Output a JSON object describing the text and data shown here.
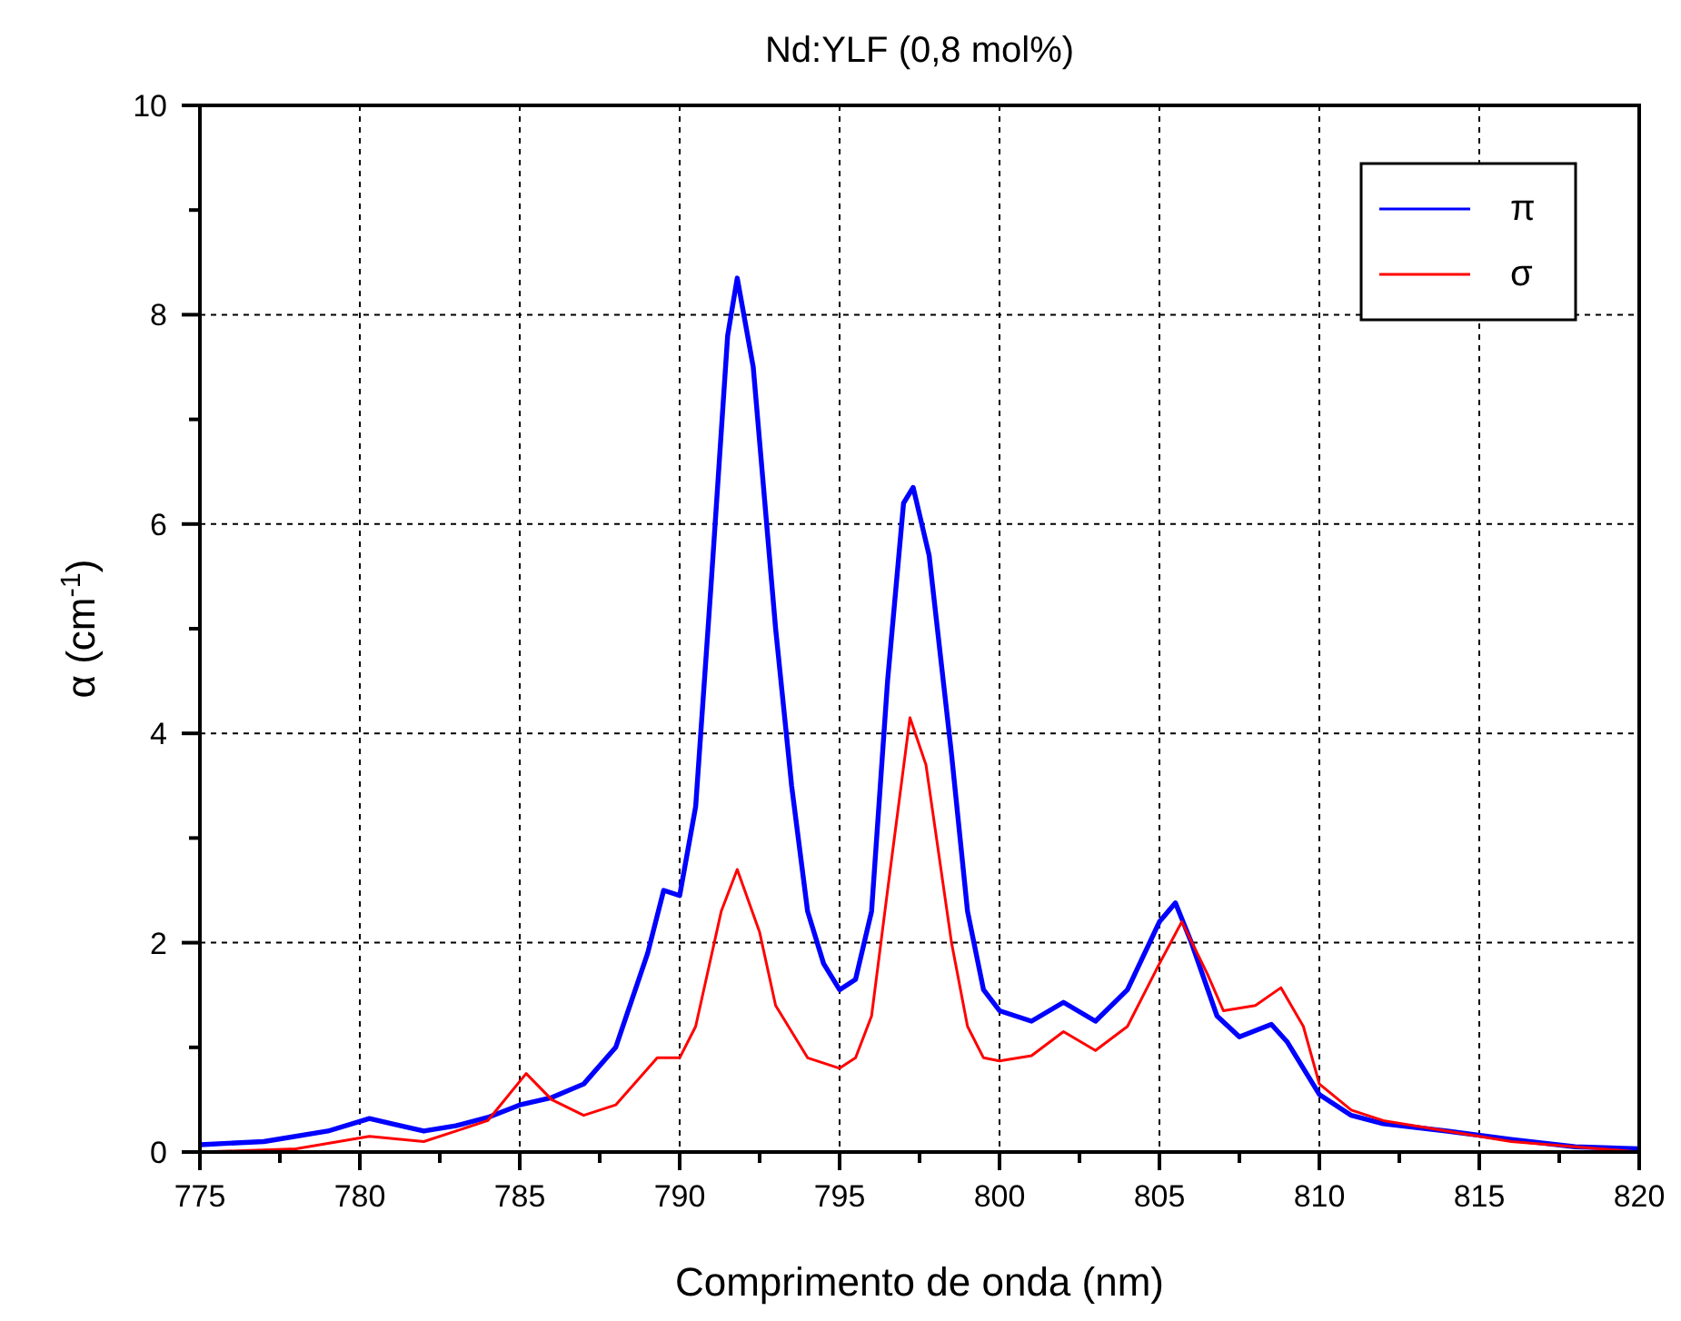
{
  "chart_data": {
    "type": "line",
    "title": "Nd:YLF (0,8 mol%)",
    "xlabel": "Comprimento de onda (nm)",
    "ylabel": "α (cm$^{-1}$)",
    "xlim": [
      775,
      820
    ],
    "ylim": [
      0,
      10
    ],
    "xticks": [
      775,
      {
        "value": 777.5,
        "label": null
      },
      780,
      {
        "value": 782.5,
        "label": null
      },
      785,
      {
        "value": 787.5,
        "label": null
      },
      790,
      {
        "value": 792.5,
        "label": null
      },
      795,
      {
        "value": 797.5,
        "label": null
      },
      800,
      {
        "value": 802.5,
        "label": null
      },
      805,
      {
        "value": 807.5,
        "label": null
      },
      810,
      {
        "value": 812.5,
        "label": null
      },
      815,
      {
        "value": 817.5,
        "label": null
      },
      820
    ],
    "yticks": [
      0,
      {
        "value": 1,
        "label": null
      },
      2,
      {
        "value": 3,
        "label": null
      },
      4,
      {
        "value": 5,
        "label": null
      },
      6,
      {
        "value": 7,
        "label": null
      },
      8,
      {
        "value": 9,
        "label": null
      },
      10
    ],
    "grid": true,
    "legend": "top right",
    "line_style": "solid",
    "marker": "none",
    "series": [
      {
        "name": "π",
        "color": "#0000ff",
        "x": [
          775,
          777,
          779,
          780.3,
          781,
          782,
          783,
          784,
          785,
          786,
          787,
          788,
          789,
          789.5,
          790,
          790.5,
          791,
          791.5,
          791.8,
          792.3,
          793,
          793.5,
          794,
          794.5,
          795,
          795.5,
          796,
          796.5,
          797,
          797.3,
          797.8,
          798.5,
          799,
          799.5,
          800,
          801,
          802,
          803,
          804,
          805,
          805.5,
          806,
          806.8,
          807.5,
          808.5,
          809,
          810,
          811,
          812,
          814,
          816,
          818,
          820
        ],
        "values": [
          0.07,
          0.1,
          0.2,
          0.32,
          0.27,
          0.2,
          0.25,
          0.33,
          0.45,
          0.52,
          0.65,
          1.0,
          1.9,
          2.5,
          2.45,
          3.3,
          5.5,
          7.8,
          8.35,
          7.5,
          5.0,
          3.5,
          2.3,
          1.8,
          1.55,
          1.65,
          2.3,
          4.5,
          6.2,
          6.35,
          5.7,
          3.8,
          2.3,
          1.55,
          1.35,
          1.25,
          1.43,
          1.25,
          1.55,
          2.2,
          2.38,
          2.0,
          1.3,
          1.1,
          1.22,
          1.05,
          0.55,
          0.35,
          0.27,
          0.2,
          0.12,
          0.05,
          0.03
        ]
      },
      {
        "name": "σ",
        "color": "#ff0000",
        "x": [
          775,
          778,
          780.3,
          782,
          784,
          785.2,
          786,
          787,
          788,
          789.3,
          790,
          790.5,
          791.3,
          791.8,
          792.5,
          793,
          794,
          795,
          795.5,
          796,
          796.5,
          797.2,
          797.7,
          798.5,
          799,
          799.5,
          800,
          801,
          802,
          803,
          804,
          805,
          805.7,
          806.5,
          807,
          808,
          808.8,
          809.5,
          810,
          811,
          812,
          814,
          816,
          818,
          820
        ],
        "values": [
          0.0,
          0.03,
          0.15,
          0.1,
          0.3,
          0.75,
          0.5,
          0.35,
          0.45,
          0.9,
          0.9,
          1.2,
          2.3,
          2.7,
          2.1,
          1.4,
          0.9,
          0.8,
          0.9,
          1.3,
          2.5,
          4.15,
          3.7,
          2.0,
          1.2,
          0.9,
          0.87,
          0.92,
          1.15,
          0.97,
          1.2,
          1.8,
          2.2,
          1.7,
          1.35,
          1.4,
          1.57,
          1.2,
          0.65,
          0.4,
          0.3,
          0.2,
          0.1,
          0.05,
          0.0
        ]
      }
    ]
  }
}
